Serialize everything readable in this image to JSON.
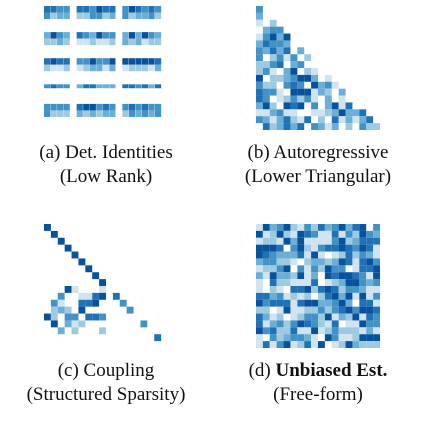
{
  "panels": [
    {
      "id": "a",
      "letter": "(a)",
      "title": "Det. Identities",
      "bold_title": false,
      "subtitle": "(Low Rank)",
      "pattern": "low_rank"
    },
    {
      "id": "b",
      "letter": "(b)",
      "title": "Autoregressive",
      "bold_title": false,
      "subtitle": "(Lower Triangular)",
      "pattern": "lower_triangular"
    },
    {
      "id": "c",
      "letter": "(c)",
      "title": "Coupling",
      "bold_title": false,
      "subtitle": "(Structured Sparsity)",
      "pattern": "coupling"
    },
    {
      "id": "d",
      "letter": "(d)",
      "title": "Unbiased Est.",
      "bold_title": true,
      "subtitle": "(Free-form)",
      "pattern": "free_form"
    }
  ],
  "colors": {
    "palette": [
      "#cfe3f1",
      "#9ecae1",
      "#6baed6",
      "#4292c6",
      "#2171b5",
      "#08519c"
    ],
    "background": "#f2f2f2"
  }
}
